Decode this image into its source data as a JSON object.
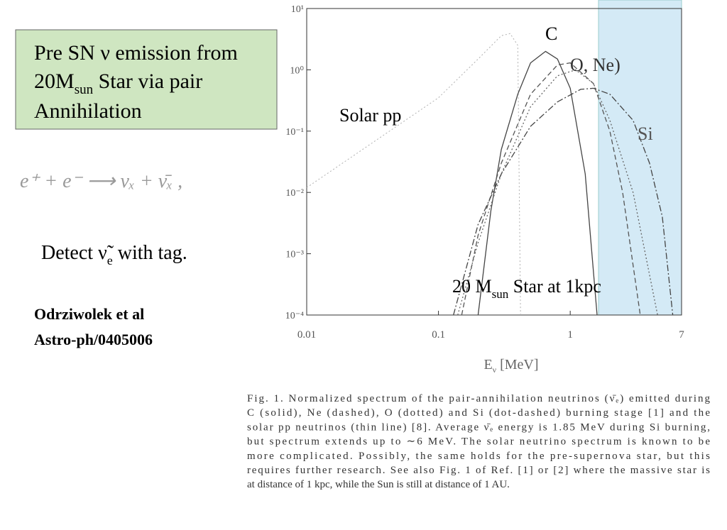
{
  "slide": {
    "box": {
      "line1": "Pre SN ν emission from",
      "line2_main": "20M",
      "line2_sub": "sun",
      "line2_rest": "  Star via pair",
      "line3": "Annihilation"
    },
    "equation": "e⁺ + e⁻ ⟶ νₓ + ν̄ₓ ,",
    "detect": {
      "main": "Detect ν̃",
      "sub": "e",
      "rest": " with tag."
    },
    "reference": [
      "Odrziwolek et al",
      "Astro-ph/0405006"
    ],
    "caption": [
      "Fig. 1. Normalized spectrum of the pair-annihilation neutrinos (ν̄ₑ) emitted during",
      "C (solid), Ne (dashed), O (dotted) and Si (dot-dashed) burning stage [1] and the",
      "solar pp neutrinos (thin line) [8]. Average ν̄ₑ energy is 1.85 MeV during Si burning,",
      "but spectrum extends up to ∼6 MeV. The solar neutrino spectrum is known to be",
      "more complicated. Possibly, the same holds for the pre-supernova star, but this",
      "requires further research. See also Fig. 1 of Ref. [1] or [2] where the massive star is",
      "at distance of 1 kpc, while the Sun is still at distance of 1 AU."
    ]
  },
  "chart_data": {
    "type": "line",
    "xscale": "log",
    "yscale": "log",
    "grid": false,
    "xlim": [
      0.01,
      7
    ],
    "xticks": [
      0.01,
      0.1,
      1,
      7
    ],
    "ylim": [
      0.0001,
      10
    ],
    "yticks": [
      {
        "value": 10,
        "label": "10¹"
      },
      {
        "value": 1,
        "label": "10⁰"
      },
      {
        "value": 0.1,
        "label": "10⁻¹"
      },
      {
        "value": 0.01,
        "label": "10⁻²"
      },
      {
        "value": 0.001,
        "label": "10⁻³"
      },
      {
        "value": 0.0001,
        "label": "10⁻⁴"
      }
    ],
    "xlabel": {
      "main": "E",
      "sub": "ν",
      "rest": " [MeV]"
    },
    "shaded_xrange": [
      1.64,
      7
    ],
    "shade_color": "#d4eaf6",
    "annotations": [
      "C",
      "O, Ne)",
      "Si",
      "Solar pp"
    ],
    "star_label": {
      "main": "20 M",
      "sub": "sun",
      "rest": " Star at 1kpc"
    },
    "series": [
      {
        "color": "#b0b0b0",
        "dash": "dotted",
        "width": 1,
        "x": [
          0.01,
          0.03,
          0.1,
          0.2,
          0.3,
          0.35,
          0.4,
          0.42
        ],
        "values": [
          0.012,
          0.06,
          0.35,
          1.5,
          3.6,
          3.9,
          2.5,
          0.0001
        ]
      },
      {
        "color": "#444444",
        "dash": "solid",
        "width": 1.3,
        "x": [
          0.2,
          0.25,
          0.3,
          0.4,
          0.5,
          0.65,
          0.8,
          1.0,
          1.3,
          1.6
        ],
        "values": [
          0.0001,
          0.005,
          0.05,
          0.4,
          1.3,
          2.0,
          1.5,
          0.5,
          0.02,
          0.0001
        ]
      },
      {
        "color": "#555555",
        "dash": "dashed",
        "width": 1.3,
        "x": [
          0.15,
          0.2,
          0.3,
          0.5,
          0.8,
          1.0,
          1.5,
          2,
          2.5,
          3.4
        ],
        "values": [
          0.0001,
          0.002,
          0.03,
          0.4,
          1.2,
          1.3,
          0.6,
          0.1,
          0.01,
          0.0001
        ]
      },
      {
        "color": "#666666",
        "dash": "dotted",
        "width": 1.3,
        "x": [
          0.14,
          0.2,
          0.3,
          0.5,
          0.8,
          1.1,
          1.5,
          2,
          3,
          4.6
        ],
        "values": [
          0.0001,
          0.0015,
          0.02,
          0.25,
          0.8,
          1.0,
          0.6,
          0.15,
          0.01,
          0.0001
        ]
      },
      {
        "color": "#444444",
        "dash": "dashdot",
        "width": 1.3,
        "x": [
          0.13,
          0.2,
          0.3,
          0.5,
          0.8,
          1.2,
          1.5,
          2,
          3,
          4,
          5,
          6
        ],
        "values": [
          0.0001,
          0.003,
          0.02,
          0.12,
          0.3,
          0.48,
          0.5,
          0.4,
          0.15,
          0.03,
          0.004,
          0.0001
        ]
      }
    ]
  }
}
